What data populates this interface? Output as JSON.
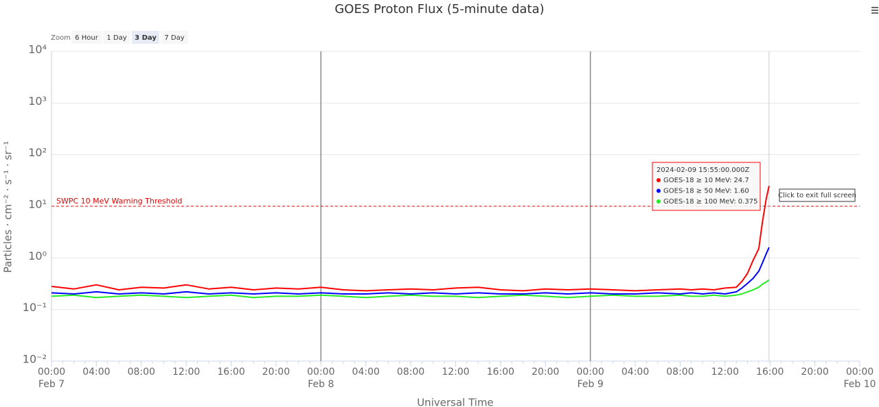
{
  "ui": {
    "zoom_label": "Zoom",
    "zoom_buttons": [
      "6 Hour",
      "1 Day",
      "3 Day",
      "7 Day"
    ],
    "zoom_selected": 2,
    "exit_button": "Click to exit full screen"
  },
  "chart_data": {
    "type": "line",
    "title": "GOES Proton Flux (5-minute data)",
    "xlabel": "Universal Time",
    "ylabel": "Particles · cm⁻² · s⁻¹ · sr⁻¹",
    "log_y": true,
    "grid": true,
    "x": [
      "2024-02-07T00:00",
      "2024-02-07T02:00",
      "2024-02-07T04:00",
      "2024-02-07T06:00",
      "2024-02-07T08:00",
      "2024-02-07T10:00",
      "2024-02-07T12:00",
      "2024-02-07T14:00",
      "2024-02-07T16:00",
      "2024-02-07T18:00",
      "2024-02-07T20:00",
      "2024-02-07T22:00",
      "2024-02-08T00:00",
      "2024-02-08T02:00",
      "2024-02-08T04:00",
      "2024-02-08T06:00",
      "2024-02-08T08:00",
      "2024-02-08T10:00",
      "2024-02-08T12:00",
      "2024-02-08T14:00",
      "2024-02-08T16:00",
      "2024-02-08T18:00",
      "2024-02-08T20:00",
      "2024-02-08T22:00",
      "2024-02-09T00:00",
      "2024-02-09T02:00",
      "2024-02-09T04:00",
      "2024-02-09T06:00",
      "2024-02-09T08:00",
      "2024-02-09T09:00",
      "2024-02-09T10:00",
      "2024-02-09T11:00",
      "2024-02-09T12:00",
      "2024-02-09T13:00",
      "2024-02-09T13:30",
      "2024-02-09T14:00",
      "2024-02-09T14:30",
      "2024-02-09T15:00",
      "2024-02-09T15:20",
      "2024-02-09T15:40",
      "2024-02-09T15:55"
    ],
    "series": [
      {
        "name": "GOES-18 ≥ 10 MeV:",
        "color": "#ff0000",
        "values": [
          0.28,
          0.25,
          0.3,
          0.24,
          0.27,
          0.26,
          0.3,
          0.25,
          0.27,
          0.24,
          0.26,
          0.25,
          0.27,
          0.24,
          0.23,
          0.24,
          0.25,
          0.24,
          0.26,
          0.27,
          0.24,
          0.23,
          0.25,
          0.24,
          0.25,
          0.24,
          0.23,
          0.24,
          0.25,
          0.24,
          0.25,
          0.24,
          0.26,
          0.27,
          0.35,
          0.5,
          0.9,
          1.5,
          5,
          14,
          24.7
        ],
        "value_labels": [
          null,
          null,
          null,
          null,
          null,
          null,
          null,
          null,
          null,
          null,
          null,
          null,
          null,
          null,
          null,
          null,
          null,
          null,
          null,
          null,
          null,
          null,
          null,
          null,
          null,
          null,
          null,
          null,
          null,
          null,
          null,
          null,
          null,
          null,
          null,
          null,
          null,
          null,
          null,
          null,
          "24.7"
        ]
      },
      {
        "name": "GOES-18 ≥ 50 MeV:",
        "color": "#0000ff",
        "values": [
          0.21,
          0.2,
          0.22,
          0.2,
          0.21,
          0.2,
          0.22,
          0.2,
          0.21,
          0.2,
          0.21,
          0.2,
          0.21,
          0.2,
          0.2,
          0.21,
          0.2,
          0.21,
          0.2,
          0.21,
          0.2,
          0.2,
          0.21,
          0.2,
          0.21,
          0.2,
          0.2,
          0.21,
          0.2,
          0.21,
          0.2,
          0.21,
          0.2,
          0.22,
          0.26,
          0.32,
          0.4,
          0.55,
          0.8,
          1.2,
          1.6
        ],
        "value_labels": [
          null,
          null,
          null,
          null,
          null,
          null,
          null,
          null,
          null,
          null,
          null,
          null,
          null,
          null,
          null,
          null,
          null,
          null,
          null,
          null,
          null,
          null,
          null,
          null,
          null,
          null,
          null,
          null,
          null,
          null,
          null,
          null,
          null,
          null,
          null,
          null,
          null,
          null,
          null,
          null,
          "1.60"
        ]
      },
      {
        "name": "GOES-18 ≥ 100 MeV:",
        "color": "#22ee22",
        "values": [
          0.18,
          0.19,
          0.17,
          0.18,
          0.19,
          0.18,
          0.17,
          0.18,
          0.19,
          0.17,
          0.18,
          0.18,
          0.19,
          0.18,
          0.17,
          0.18,
          0.19,
          0.18,
          0.18,
          0.17,
          0.18,
          0.19,
          0.18,
          0.17,
          0.18,
          0.19,
          0.18,
          0.18,
          0.19,
          0.18,
          0.18,
          0.19,
          0.18,
          0.19,
          0.2,
          0.22,
          0.24,
          0.27,
          0.31,
          0.34,
          0.375
        ],
        "value_labels": [
          null,
          null,
          null,
          null,
          null,
          null,
          null,
          null,
          null,
          null,
          null,
          null,
          null,
          null,
          null,
          null,
          null,
          null,
          null,
          null,
          null,
          null,
          null,
          null,
          null,
          null,
          null,
          null,
          null,
          null,
          null,
          null,
          null,
          null,
          null,
          null,
          null,
          null,
          null,
          null,
          "0.375"
        ]
      }
    ],
    "tooltip_title": "2024-02-09 15:55:00.000Z",
    "ylim": [
      0.01,
      10000
    ],
    "yticks": [
      {
        "value": 0.01,
        "label": "10⁻²"
      },
      {
        "value": 0.1,
        "label": "10⁻¹"
      },
      {
        "value": 1,
        "label": "10⁰"
      },
      {
        "value": 10,
        "label": "10¹"
      },
      {
        "value": 100,
        "label": "10²"
      },
      {
        "value": 1000,
        "label": "10³"
      },
      {
        "value": 10000,
        "label": "10⁴"
      }
    ],
    "xlim": [
      "2024-02-07T00:00",
      "2024-02-10T00:00"
    ],
    "xticks": [
      {
        "value": "2024-02-07T00:00",
        "label": "00:00"
      },
      {
        "value": "2024-02-07T04:00",
        "label": "04:00"
      },
      {
        "value": "2024-02-07T08:00",
        "label": "08:00"
      },
      {
        "value": "2024-02-07T12:00",
        "label": "12:00"
      },
      {
        "value": "2024-02-07T16:00",
        "label": "16:00"
      },
      {
        "value": "2024-02-07T20:00",
        "label": "20:00"
      },
      {
        "value": "2024-02-08T00:00",
        "label": "00:00"
      },
      {
        "value": "2024-02-08T04:00",
        "label": "04:00"
      },
      {
        "value": "2024-02-08T08:00",
        "label": "08:00"
      },
      {
        "value": "2024-02-08T12:00",
        "label": "12:00"
      },
      {
        "value": "2024-02-08T16:00",
        "label": "16:00"
      },
      {
        "value": "2024-02-08T20:00",
        "label": "20:00"
      },
      {
        "value": "2024-02-09T00:00",
        "label": "00:00"
      },
      {
        "value": "2024-02-09T04:00",
        "label": "04:00"
      },
      {
        "value": "2024-02-09T08:00",
        "label": "08:00"
      },
      {
        "value": "2024-02-09T12:00",
        "label": "12:00"
      },
      {
        "value": "2024-02-09T16:00",
        "label": "16:00"
      },
      {
        "value": "2024-02-09T20:00",
        "label": "20:00"
      },
      {
        "value": "2024-02-10T00:00",
        "label": "00:00"
      }
    ],
    "xtick_dates": [
      {
        "value": "2024-02-07T00:00",
        "label": "Feb 7"
      },
      {
        "value": "2024-02-08T00:00",
        "label": "Feb 8"
      },
      {
        "value": "2024-02-09T00:00",
        "label": "Feb 9"
      },
      {
        "value": "2024-02-10T00:00",
        "label": "Feb 10"
      }
    ],
    "plot_lines": [
      "2024-02-08T00:00",
      "2024-02-09T00:00"
    ],
    "thresholds": [
      {
        "value": 10,
        "label": "SWPC 10 MeV Warning Threshold",
        "color": "#e00000"
      }
    ]
  }
}
